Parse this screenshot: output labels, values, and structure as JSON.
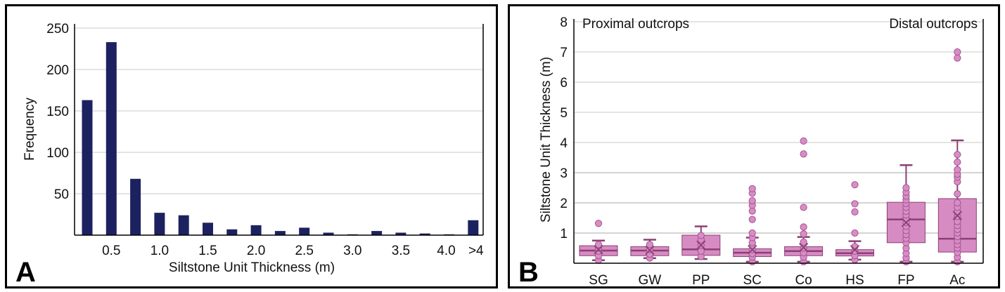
{
  "colors": {
    "bar": "#1c2260",
    "box_fill": "#d68cc2",
    "box_stroke": "#8b3f74",
    "point_fill": "#d98cc8",
    "point_stroke": "#a0568a",
    "grid": "#c8c8c8",
    "axis": "#000000"
  },
  "chart_data": [
    {
      "panel": "A",
      "type": "bar",
      "panel_label": "A",
      "title": "",
      "xlabel": "Siltstone Unit Thickness (m)",
      "ylabel": "Frequency",
      "ylim": [
        0,
        250
      ],
      "yticks": [
        50,
        100,
        150,
        200,
        250
      ],
      "grid": true,
      "categories": [
        "0.25",
        "0.5",
        "0.75",
        "1.0",
        "1.25",
        "1.5",
        "1.75",
        "2.0",
        "2.25",
        "2.5",
        "2.75",
        "3.0",
        "3.25",
        "3.5",
        "3.75",
        "4.0",
        ">4"
      ],
      "xtick_labels": [
        "",
        "0.5",
        "",
        "1.0",
        "",
        "1.5",
        "",
        "2.0",
        "",
        "2.5",
        "",
        "3.0",
        "",
        "3.5",
        "",
        "4.0",
        ">4"
      ],
      "values": [
        163,
        233,
        68,
        27,
        24,
        15,
        7,
        12,
        5,
        9,
        3,
        1,
        5,
        3,
        2,
        1,
        18
      ]
    },
    {
      "panel": "B",
      "type": "box",
      "panel_label": "B",
      "title": "",
      "xlabel": "",
      "ylabel": "Siltstone Unit Thickness (m)",
      "ylim": [
        0,
        8
      ],
      "yticks": [
        1,
        2,
        3,
        4,
        5,
        6,
        7,
        8
      ],
      "grid": true,
      "annotations": [
        "Proximal outcrops",
        "Distal outcrops"
      ],
      "categories": [
        "SG",
        "GW",
        "PP",
        "SC",
        "Co",
        "HS",
        "FP",
        "Ac"
      ],
      "series": [
        {
          "name": "SG",
          "whisker_low": 0.1,
          "q1": 0.25,
          "median": 0.42,
          "q3": 0.58,
          "whisker_high": 0.75,
          "mean": 0.45,
          "points": [
            0.1,
            0.25,
            0.4,
            0.5,
            0.62,
            1.32
          ],
          "outliers": [
            1.32
          ]
        },
        {
          "name": "GW",
          "whisker_low": 0.17,
          "q1": 0.25,
          "median": 0.42,
          "q3": 0.55,
          "whisker_high": 0.78,
          "mean": 0.43,
          "points": [
            0.17,
            0.3,
            0.45,
            0.62
          ],
          "outliers": []
        },
        {
          "name": "PP",
          "whisker_low": 0.14,
          "q1": 0.26,
          "median": 0.46,
          "q3": 0.93,
          "whisker_high": 1.22,
          "mean": 0.6,
          "points": [
            0.22,
            0.4,
            0.6,
            0.78,
            0.92
          ],
          "outliers": []
        },
        {
          "name": "SC",
          "whisker_low": 0.05,
          "q1": 0.22,
          "median": 0.35,
          "q3": 0.48,
          "whisker_high": 0.85,
          "mean": 0.45,
          "points": [
            0.05,
            0.2,
            0.32,
            0.45,
            0.58,
            0.68,
            0.85,
            1.0,
            1.45,
            1.73,
            1.92,
            2.07,
            2.32,
            2.47
          ],
          "outliers": [
            1.0,
            1.45,
            1.73,
            1.92,
            2.07,
            2.32,
            2.47
          ]
        },
        {
          "name": "Co",
          "whisker_low": 0.05,
          "q1": 0.25,
          "median": 0.4,
          "q3": 0.55,
          "whisker_high": 0.87,
          "mean": 0.52,
          "points": [
            0.05,
            0.2,
            0.35,
            0.5,
            0.7,
            0.97,
            1.2,
            1.85,
            3.62,
            4.05
          ],
          "outliers": [
            0.97,
            1.2,
            1.85,
            3.62,
            4.05
          ]
        },
        {
          "name": "HS",
          "whisker_low": 0.12,
          "q1": 0.24,
          "median": 0.33,
          "q3": 0.45,
          "whisker_high": 0.73,
          "mean": 0.45,
          "points": [
            0.12,
            0.25,
            0.4,
            0.55,
            1.0,
            1.7,
            1.97,
            2.6
          ],
          "outliers": [
            1.0,
            1.7,
            1.97,
            2.6
          ]
        },
        {
          "name": "FP",
          "whisker_low": 0.05,
          "q1": 0.68,
          "median": 1.45,
          "q3": 2.02,
          "whisker_high": 3.25,
          "mean": 1.35,
          "points": [
            0.05,
            0.18,
            0.33,
            0.5,
            0.68,
            0.82,
            0.95,
            1.08,
            1.22,
            1.35,
            1.48,
            1.6,
            1.72,
            1.85,
            1.98,
            2.1,
            2.22,
            2.35,
            2.5
          ],
          "outliers": []
        },
        {
          "name": "Ac",
          "whisker_low": 0.05,
          "q1": 0.37,
          "median": 0.81,
          "q3": 2.14,
          "whisker_high": 4.07,
          "mean": 1.58,
          "points": [
            0.05,
            0.2,
            0.35,
            0.5,
            0.62,
            0.75,
            0.88,
            1.0,
            1.12,
            1.25,
            1.38,
            1.55,
            1.7,
            1.85,
            2.0,
            2.3,
            2.7,
            2.85,
            2.95,
            3.1,
            3.35,
            3.6,
            6.8,
            7.0
          ],
          "outliers": [
            6.8,
            7.0
          ]
        }
      ]
    }
  ]
}
